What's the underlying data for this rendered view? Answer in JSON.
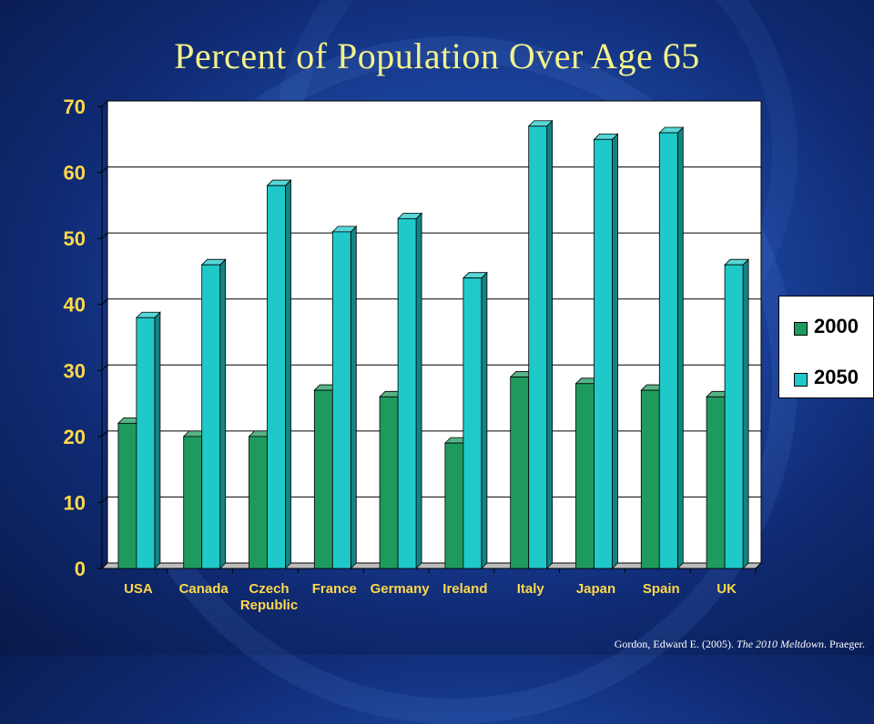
{
  "slide": {
    "title": "Percent of Population Over Age 65",
    "citation": {
      "before": "Gordon, Edward E. (2005). ",
      "book": "The 2010 Meltdown",
      "after": ". Praeger."
    }
  },
  "colors": {
    "series_2000": "#1f9a5e",
    "series_2050": "#1fc9c9",
    "tick_label": "#ffd84a",
    "category_label": "#ffd84a",
    "plot_background": "#ffffff",
    "gridline": "#000000"
  },
  "chart_data": {
    "type": "bar",
    "title": "Percent of Population Over Age 65",
    "categories": [
      "USA",
      "Canada",
      [
        "Czech",
        "Republic"
      ],
      "France",
      "Germany",
      "Ireland",
      "Italy",
      "Japan",
      "Spain",
      "UK"
    ],
    "series": [
      {
        "name": "2000",
        "values": [
          22,
          20,
          20,
          27,
          26,
          19,
          29,
          28,
          27,
          26
        ]
      },
      {
        "name": "2050",
        "values": [
          38,
          46,
          58,
          51,
          53,
          44,
          67,
          65,
          66,
          46
        ]
      }
    ],
    "ylim": [
      0,
      70
    ],
    "yticks": [
      0,
      10,
      20,
      30,
      40,
      50,
      60,
      70
    ],
    "grid": true,
    "legend": "right",
    "style": "3d-bars"
  }
}
